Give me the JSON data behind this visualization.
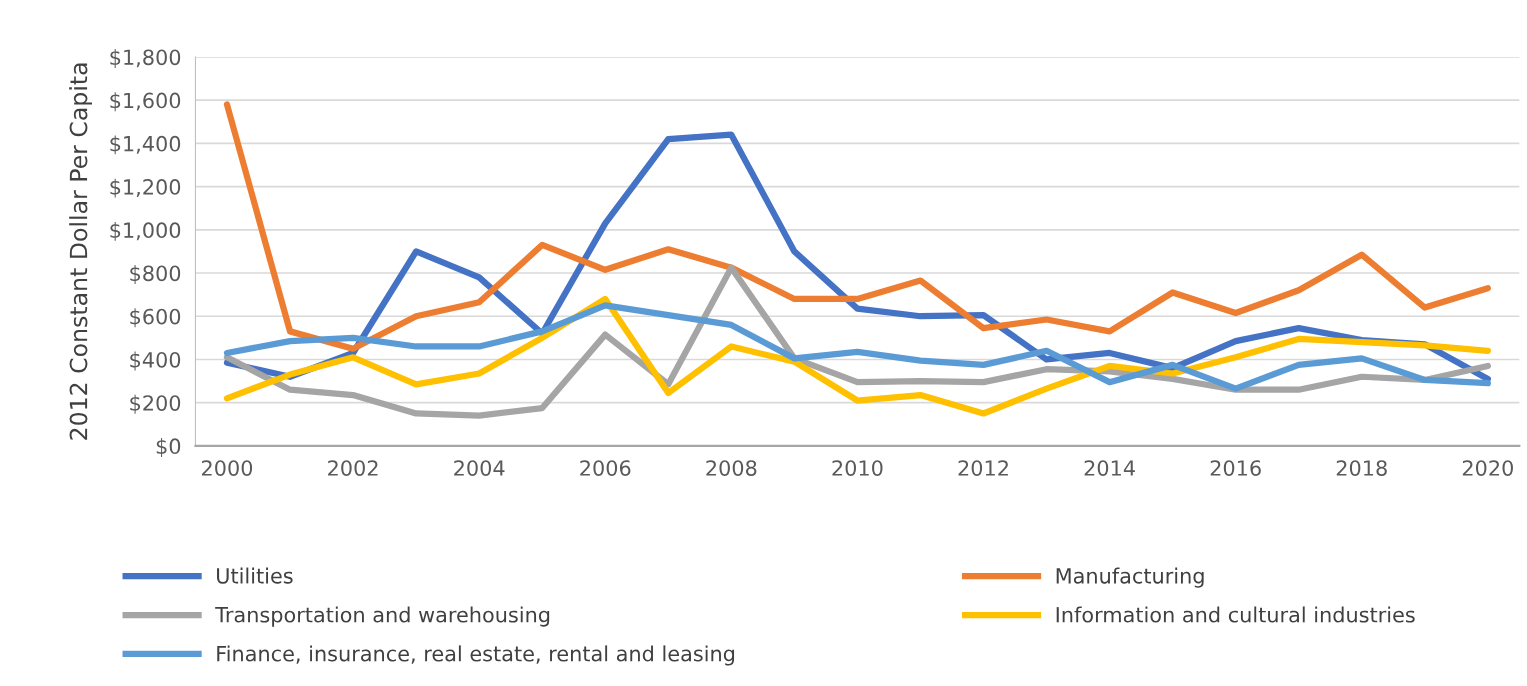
{
  "chart_data": {
    "type": "line",
    "ylabel": "2012 Constant Dollar Per Capita",
    "x": [
      2000,
      2001,
      2002,
      2003,
      2004,
      2005,
      2006,
      2007,
      2008,
      2009,
      2010,
      2011,
      2012,
      2013,
      2014,
      2015,
      2016,
      2017,
      2018,
      2019,
      2020
    ],
    "series": [
      {
        "name": "Utilities",
        "color": "#4472c4",
        "values": [
          385,
          320,
          430,
          900,
          780,
          520,
          1030,
          1420,
          1440,
          900,
          635,
          600,
          605,
          400,
          430,
          360,
          485,
          545,
          490,
          470,
          310
        ]
      },
      {
        "name": "Manufacturing",
        "color": "#ed7d31",
        "values": [
          1580,
          530,
          450,
          600,
          665,
          930,
          815,
          910,
          825,
          680,
          680,
          765,
          545,
          585,
          530,
          710,
          615,
          720,
          885,
          640,
          730
        ]
      },
      {
        "name": "Transportation and warehousing",
        "color": "#a5a5a5",
        "values": [
          410,
          260,
          235,
          150,
          140,
          175,
          515,
          285,
          825,
          405,
          295,
          300,
          295,
          355,
          345,
          310,
          260,
          260,
          320,
          305,
          370
        ]
      },
      {
        "name": "Information and cultural industries",
        "color": "#ffc000",
        "values": [
          220,
          330,
          410,
          285,
          335,
          500,
          680,
          245,
          460,
          390,
          210,
          235,
          150,
          265,
          370,
          335,
          410,
          495,
          480,
          465,
          440
        ]
      },
      {
        "name": "Finance, insurance, real estate, rental and leasing",
        "color": "#5b9bd5",
        "values": [
          430,
          485,
          500,
          460,
          460,
          530,
          650,
          605,
          560,
          405,
          435,
          395,
          375,
          440,
          295,
          375,
          265,
          375,
          405,
          305,
          290
        ]
      }
    ],
    "xlim": [
      1999.5,
      2020.5
    ],
    "xticks": [
      2000,
      2002,
      2004,
      2006,
      2008,
      2010,
      2012,
      2014,
      2016,
      2018,
      2020
    ],
    "ylim": [
      0,
      1800
    ],
    "yticks": [
      {
        "value": 0,
        "label": "$0"
      },
      {
        "value": 200,
        "label": "$200"
      },
      {
        "value": 400,
        "label": "$400"
      },
      {
        "value": 600,
        "label": "$600"
      },
      {
        "value": 800,
        "label": "$800"
      },
      {
        "value": 1000,
        "label": "$1,000"
      },
      {
        "value": 1200,
        "label": "$1,200"
      },
      {
        "value": 1400,
        "label": "$1,400"
      },
      {
        "value": 1600,
        "label": "$1,600"
      },
      {
        "value": 1800,
        "label": "$1,800"
      }
    ],
    "grid": "y",
    "legend": "bottom",
    "marker": "none",
    "line_style": "solid"
  }
}
